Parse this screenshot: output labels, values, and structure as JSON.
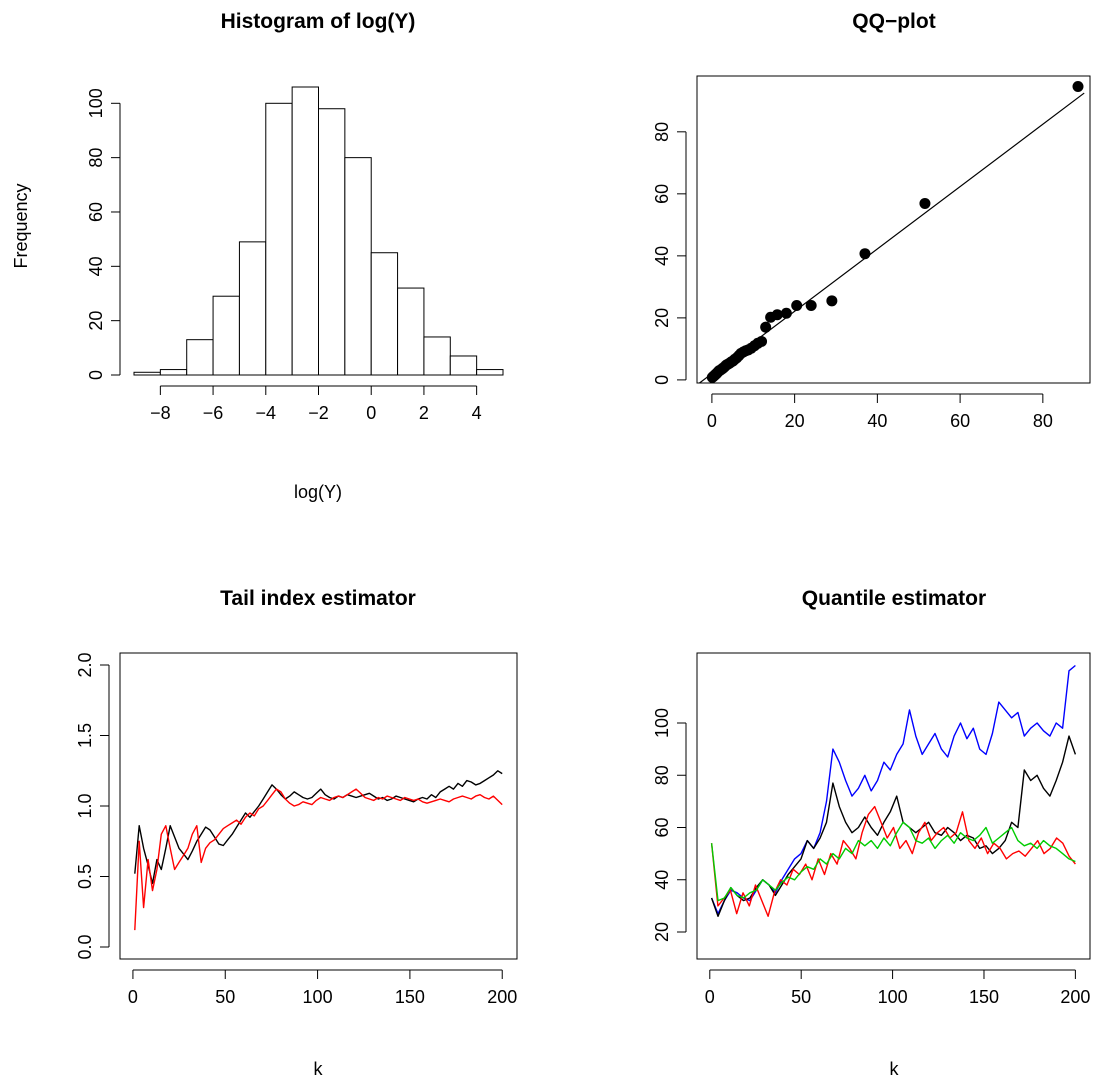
{
  "chart_data": [
    {
      "type": "bar",
      "title": "Histogram of log(Y)",
      "xlabel": "log(Y)",
      "ylabel": "Frequency",
      "bin_edges": [
        -9,
        -8,
        -7,
        -6,
        -5,
        -4,
        -3,
        -2,
        -1,
        0,
        1,
        2,
        3,
        4,
        5
      ],
      "values": [
        1,
        2,
        13,
        29,
        49,
        100,
        106,
        98,
        80,
        45,
        32,
        14,
        7,
        2
      ],
      "xlim": [
        -9,
        5
      ],
      "ylim": [
        0,
        106
      ],
      "xticks": [
        -8,
        -6,
        -4,
        -2,
        0,
        2,
        4
      ],
      "xtick_labels": [
        "−8",
        "−6",
        "−4",
        "−2",
        "0",
        "2",
        "4"
      ],
      "yticks": [
        0,
        20,
        40,
        60,
        80,
        100
      ],
      "ytick_labels": [
        "0",
        "20",
        "40",
        "60",
        "80",
        "100"
      ]
    },
    {
      "type": "scatter",
      "title": "QQ−plot",
      "xlabel": "",
      "ylabel": "",
      "x": [
        0.1,
        0.3,
        0.5,
        0.7,
        0.9,
        1.1,
        1.3,
        1.5,
        1.7,
        2.0,
        2.3,
        2.6,
        2.9,
        3.2,
        3.5,
        3.9,
        4.3,
        4.7,
        5.1,
        5.5,
        6.0,
        6.5,
        7.0,
        7.6,
        8.2,
        8.8,
        9.5,
        10.3,
        11.1,
        12.0,
        13.0,
        14.2,
        15.8,
        18.0,
        20.5,
        24.0,
        29.0,
        37.0,
        51.5,
        88.5
      ],
      "y": [
        0.8,
        1.0,
        1.3,
        1.5,
        1.8,
        2.0,
        2.3,
        2.6,
        2.9,
        3.1,
        3.4,
        3.7,
        4.0,
        4.4,
        4.8,
        5.1,
        5.4,
        5.8,
        6.1,
        6.6,
        7.1,
        7.8,
        8.5,
        9.0,
        9.4,
        9.7,
        10.2,
        11.0,
        11.8,
        12.4,
        17.0,
        20.2,
        21.0,
        21.5,
        24.0,
        24.0,
        25.5,
        40.7,
        56.9,
        94.6
      ],
      "reference_line": {
        "x1": -3,
        "y1": -3,
        "x2": 90,
        "y2": 92.5
      },
      "xlim": [
        -3.6,
        91.4
      ],
      "ylim": [
        -1,
        98
      ],
      "xticks": [
        0,
        20,
        40,
        60,
        80
      ],
      "xtick_labels": [
        "0",
        "20",
        "40",
        "60",
        "80"
      ],
      "yticks": [
        0,
        20,
        40,
        60,
        80
      ],
      "ytick_labels": [
        "0",
        "20",
        "40",
        "60",
        "80"
      ]
    },
    {
      "type": "line",
      "title": "Tail index estimator",
      "xlabel": "k",
      "ylabel": "",
      "x_start": 1,
      "x_end": 200,
      "series": [
        {
          "color": "#000000",
          "values": [
            0.52,
            0.86,
            0.7,
            0.58,
            0.45,
            0.62,
            0.55,
            0.7,
            0.86,
            0.78,
            0.7,
            0.66,
            0.62,
            0.68,
            0.75,
            0.8,
            0.85,
            0.83,
            0.78,
            0.73,
            0.72,
            0.76,
            0.8,
            0.85,
            0.9,
            0.95,
            0.92,
            0.96,
            1.0,
            1.05,
            1.1,
            1.15,
            1.12,
            1.08,
            1.05,
            1.07,
            1.1,
            1.08,
            1.06,
            1.05,
            1.06,
            1.09,
            1.12,
            1.08,
            1.06,
            1.05,
            1.07,
            1.06,
            1.08,
            1.07,
            1.06,
            1.07,
            1.08,
            1.09,
            1.07,
            1.05,
            1.06,
            1.04,
            1.05,
            1.07,
            1.06,
            1.05,
            1.04,
            1.03,
            1.05,
            1.06,
            1.05,
            1.08,
            1.06,
            1.1,
            1.12,
            1.14,
            1.12,
            1.16,
            1.14,
            1.18,
            1.17,
            1.15,
            1.16,
            1.18,
            1.2,
            1.22,
            1.25,
            1.23
          ]
        },
        {
          "color": "#ff0000",
          "values": [
            0.12,
            0.75,
            0.28,
            0.62,
            0.4,
            0.55,
            0.8,
            0.86,
            0.7,
            0.55,
            0.6,
            0.65,
            0.7,
            0.8,
            0.86,
            0.6,
            0.7,
            0.74,
            0.76,
            0.8,
            0.84,
            0.86,
            0.88,
            0.9,
            0.87,
            0.92,
            0.95,
            0.93,
            0.98,
            1.0,
            1.04,
            1.08,
            1.12,
            1.1,
            1.05,
            1.02,
            1.0,
            1.01,
            1.03,
            1.02,
            1.01,
            1.04,
            1.06,
            1.05,
            1.04,
            1.06,
            1.07,
            1.06,
            1.08,
            1.1,
            1.12,
            1.09,
            1.06,
            1.05,
            1.04,
            1.06,
            1.05,
            1.07,
            1.06,
            1.05,
            1.04,
            1.06,
            1.05,
            1.04,
            1.05,
            1.03,
            1.02,
            1.03,
            1.04,
            1.05,
            1.04,
            1.03,
            1.05,
            1.06,
            1.07,
            1.06,
            1.05,
            1.07,
            1.08,
            1.06,
            1.05,
            1.07,
            1.04,
            1.01
          ]
        }
      ],
      "xlim": [
        -7,
        208
      ],
      "ylim": [
        0,
        2
      ],
      "xticks": [
        0,
        50,
        100,
        150,
        200
      ],
      "xtick_labels": [
        "0",
        "50",
        "100",
        "150",
        "200"
      ],
      "yticks": [
        0,
        0.5,
        1,
        1.5,
        2
      ],
      "ytick_labels": [
        "0.0",
        "0.5",
        "1.0",
        "1.5",
        "2.0"
      ]
    },
    {
      "type": "line",
      "title": "Quantile estimator",
      "xlabel": "k",
      "ylabel": "",
      "x_start": 1,
      "x_end": 200,
      "series": [
        {
          "color": "#0000ff",
          "values": [
            33,
            27,
            32,
            36,
            35,
            33,
            32,
            36,
            40,
            38,
            35,
            40,
            44,
            48,
            50,
            55,
            52,
            58,
            70,
            90,
            85,
            78,
            72,
            75,
            80,
            74,
            78,
            85,
            82,
            88,
            92,
            105,
            95,
            88,
            92,
            96,
            90,
            87,
            95,
            100,
            94,
            98,
            90,
            88,
            96,
            108,
            105,
            102,
            104,
            95,
            98,
            100,
            97,
            95,
            100,
            98,
            120,
            122
          ]
        },
        {
          "color": "#000000",
          "values": [
            33,
            26,
            32,
            37,
            34,
            32,
            33,
            37,
            40,
            38,
            34,
            38,
            42,
            45,
            48,
            55,
            52,
            56,
            62,
            77,
            68,
            62,
            58,
            60,
            64,
            60,
            57,
            62,
            66,
            72,
            62,
            60,
            58,
            60,
            62,
            58,
            57,
            60,
            58,
            55,
            57,
            56,
            52,
            53,
            50,
            52,
            55,
            62,
            60,
            82,
            78,
            80,
            75,
            72,
            78,
            85,
            95,
            88
          ]
        },
        {
          "color": "#ff0000",
          "values": [
            54,
            30,
            33,
            36,
            27,
            35,
            30,
            38,
            32,
            26,
            35,
            40,
            38,
            44,
            42,
            46,
            40,
            48,
            42,
            50,
            46,
            55,
            52,
            48,
            58,
            65,
            68,
            62,
            56,
            60,
            52,
            55,
            50,
            58,
            62,
            55,
            58,
            60,
            56,
            58,
            66,
            55,
            52,
            56,
            50,
            54,
            52,
            48,
            50,
            51,
            49,
            52,
            55,
            50,
            52,
            56,
            54,
            49,
            46
          ]
        },
        {
          "color": "#00cc00",
          "values": [
            54,
            32,
            33,
            37,
            34,
            33,
            35,
            36,
            40,
            38,
            36,
            39,
            41,
            40,
            43,
            45,
            44,
            48,
            46,
            50,
            48,
            52,
            50,
            55,
            53,
            55,
            52,
            56,
            53,
            58,
            62,
            60,
            55,
            54,
            56,
            52,
            55,
            57,
            54,
            58,
            56,
            55,
            57,
            60,
            54,
            56,
            58,
            60,
            55,
            53,
            54,
            52,
            55,
            53,
            52,
            50,
            48,
            47
          ]
        }
      ],
      "xlim": [
        -7,
        208
      ],
      "ylim": [
        18,
        124
      ],
      "xticks": [
        0,
        50,
        100,
        150,
        200
      ],
      "xtick_labels": [
        "0",
        "50",
        "100",
        "150",
        "200"
      ],
      "yticks": [
        20,
        40,
        60,
        80,
        100
      ],
      "ytick_labels": [
        "20",
        "40",
        "60",
        "80",
        "100"
      ]
    }
  ]
}
